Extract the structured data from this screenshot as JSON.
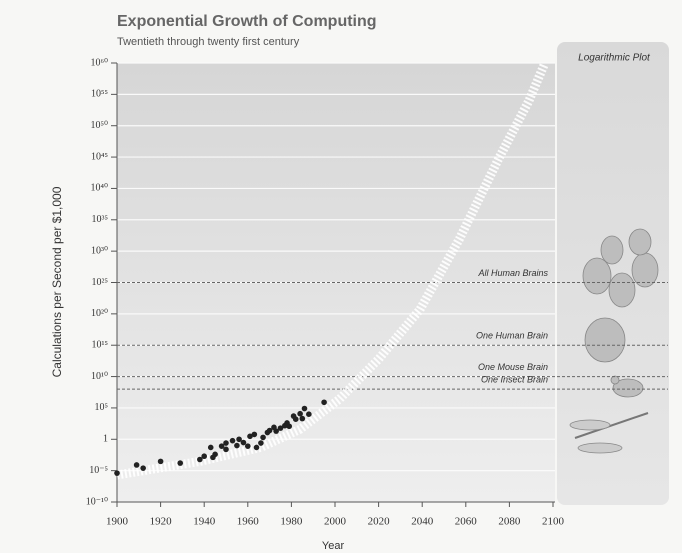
{
  "chart_data": {
    "type": "scatter",
    "title": "Exponential Growth of Computing",
    "subtitle": "Twentieth through twenty first century",
    "x_label": "Year",
    "y_label": "Calculations per Second per $1,000",
    "panel_label": "Logarithmic Plot",
    "log_y": true,
    "grid": true,
    "color": "#222222",
    "xlim": [
      1900,
      2100
    ],
    "xticks": [
      1900,
      1920,
      1940,
      1960,
      1980,
      2000,
      2020,
      2040,
      2060,
      2080,
      2100
    ],
    "ylim": [
      1e-10,
      1e+60
    ],
    "yticks": [
      {
        "value": 1e-10,
        "label": "10⁻¹⁰"
      },
      {
        "value": 1e-05,
        "label": "10⁻⁵"
      },
      1,
      {
        "value": 100000.0,
        "label": "10⁵"
      },
      {
        "value": 10000000000.0,
        "label": "10¹⁰"
      },
      {
        "value": 1000000000000000.0,
        "label": "10¹⁵"
      },
      {
        "value": 1e+20,
        "label": "10²⁰"
      },
      {
        "value": 1e+25,
        "label": "10²⁵"
      },
      {
        "value": 1e+30,
        "label": "10³⁰"
      },
      {
        "value": 1e+35,
        "label": "10³⁵"
      },
      {
        "value": 1e+40,
        "label": "10⁴⁰"
      },
      {
        "value": 1e+45,
        "label": "10⁴⁵"
      },
      {
        "value": 1e+50,
        "label": "10⁵⁰"
      },
      {
        "value": 1e+55,
        "label": "10⁵⁵"
      },
      {
        "value": 1e+60,
        "label": "10⁶⁰"
      }
    ],
    "x": [
      1900,
      1909,
      1912,
      1920,
      1929,
      1938,
      1940,
      1943,
      1944,
      1945,
      1948,
      1950,
      1950,
      1953,
      1955,
      1956,
      1958,
      1960,
      1961,
      1963,
      1964,
      1966,
      1967,
      1969,
      1970,
      1972,
      1973,
      1975,
      1977,
      1978,
      1979,
      1981,
      1982,
      1984,
      1985,
      1986,
      1988,
      1995
    ],
    "values": [
      4e-06,
      8e-05,
      2.5e-05,
      0.0003,
      0.00016,
      0.0006,
      0.002,
      0.05,
      0.0013,
      0.004,
      0.08,
      0.25,
      0.025,
      0.6,
      0.1,
      1,
      0.3,
      0.08,
      3,
      6,
      0.05,
      0.25,
      2,
      12,
      25,
      80,
      20,
      60,
      150,
      400,
      120,
      5000,
      1600,
      12000,
      2000,
      80000,
      10000,
      800000
    ],
    "trend": {
      "color": "#ffffff",
      "x": [
        1900,
        1938,
        1966,
        1984,
        2002,
        2020,
        2039,
        2057,
        2075,
        2089,
        2096
      ],
      "values": [
        2e-06,
        0.0003,
        0.05,
        40,
        2500000.0,
        6000000000000.0,
        5e+20,
        8e+31,
        5e+44,
        1e+54,
        6e+59
      ]
    },
    "reference_lines": [
      {
        "label": "All Human Brains",
        "value": 1e+25
      },
      {
        "label": "One Human Brain",
        "value": 1000000000000000.0
      },
      {
        "label": "One Mouse Brain",
        "value": 10000000000.0
      },
      {
        "label": "One Insect Brain",
        "value": 100000000.0
      }
    ]
  }
}
